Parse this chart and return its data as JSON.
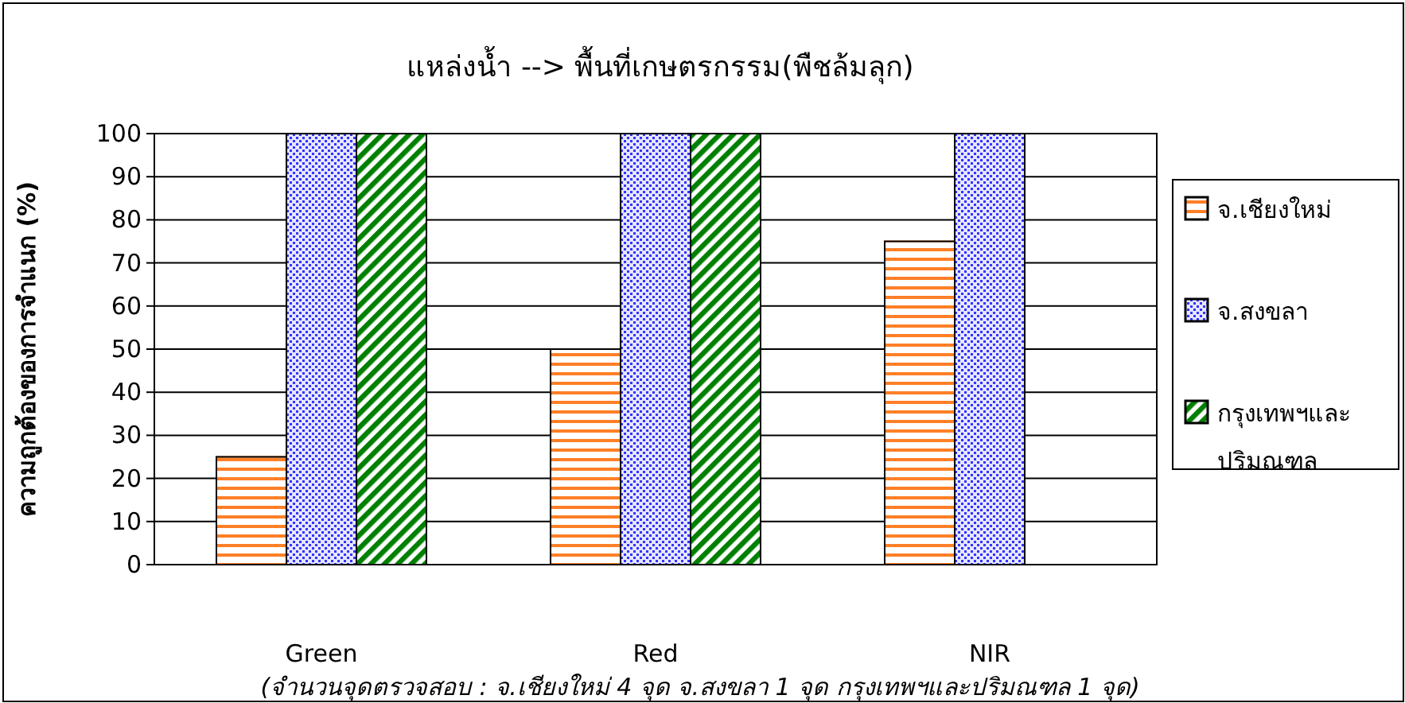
{
  "chart_data": {
    "type": "bar",
    "title": "แหล่งน้ำ --> พื้นที่เกษตรกรรม(พืชล้มลุก)",
    "ylabel": "ความถูกต้องของการจำแนก (%)",
    "categories": [
      "Green",
      "Red",
      "NIR"
    ],
    "series": [
      {
        "name": "จ.เชียงใหม่",
        "color": "#ff7f27",
        "values": [
          25,
          50,
          75
        ]
      },
      {
        "name": "จ.สงขลา",
        "color": "#3333ff",
        "values": [
          100,
          100,
          100
        ]
      },
      {
        "name": "กรุงเทพฯและปริมณฑล",
        "color": "#008000",
        "values": [
          100,
          100,
          null
        ]
      }
    ],
    "ylim": [
      0,
      100
    ],
    "yticks": [
      0,
      10,
      20,
      30,
      40,
      50,
      60,
      70,
      80,
      90,
      100
    ],
    "grid": "y",
    "legend": "right",
    "annotations": [
      "(จำนวนจุดตรวจสอบ : จ.เชียงใหม่ 4 จุด  จ.สงขลา 1 จุด  กรุงเทพฯและปริมณฑล 1 จุด)"
    ]
  }
}
